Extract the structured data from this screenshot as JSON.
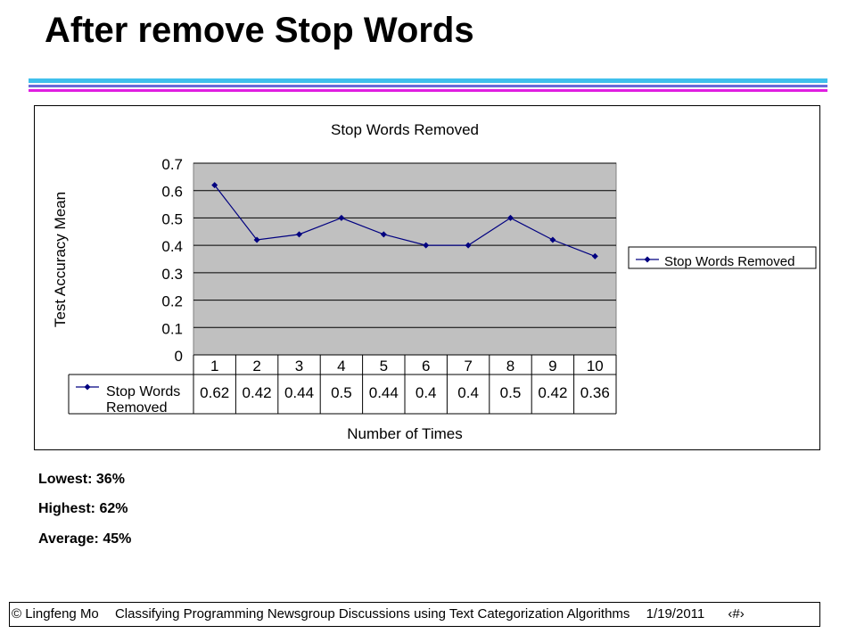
{
  "slide": {
    "title": "After remove Stop Words"
  },
  "colors": {
    "rule_cyan": "#3fc0ec",
    "rule_blue": "#6a6ad8",
    "rule_magenta": "#e01ee0",
    "plot_area": "#c0c0c0",
    "series_line": "#000080"
  },
  "chart_data": {
    "type": "line",
    "title": "Stop Words Removed",
    "xlabel": "Number of Times",
    "ylabel": "Test Accuracy Mean",
    "categories": [
      "1",
      "2",
      "3",
      "4",
      "5",
      "6",
      "7",
      "8",
      "9",
      "10"
    ],
    "series": [
      {
        "name": "Stop Words Removed",
        "values": [
          0.62,
          0.42,
          0.44,
          0.5,
          0.44,
          0.4,
          0.4,
          0.5,
          0.42,
          0.36
        ],
        "value_labels": [
          "0.62",
          "0.42",
          "0.44",
          "0.5",
          "0.44",
          "0.4",
          "0.4",
          "0.5",
          "0.42",
          "0.36"
        ]
      }
    ],
    "ylim": [
      0,
      0.7
    ],
    "yticks": [
      0,
      0.1,
      0.2,
      0.3,
      0.4,
      0.5,
      0.6,
      0.7
    ],
    "ytick_labels": [
      "0",
      "0.1",
      "0.2",
      "0.3",
      "0.4",
      "0.5",
      "0.6",
      "0.7"
    ],
    "grid": true,
    "legend": "right",
    "data_table": true
  },
  "stats": {
    "lowest": "Lowest: 36%",
    "highest": "Highest: 62%",
    "average": "Average: 45%"
  },
  "footer": {
    "author": "© Lingfeng Mo",
    "course": "Classifying Programming Newsgroup Discussions using Text Categorization Algorithms",
    "date": "1/19/2011",
    "page": "‹#›"
  }
}
